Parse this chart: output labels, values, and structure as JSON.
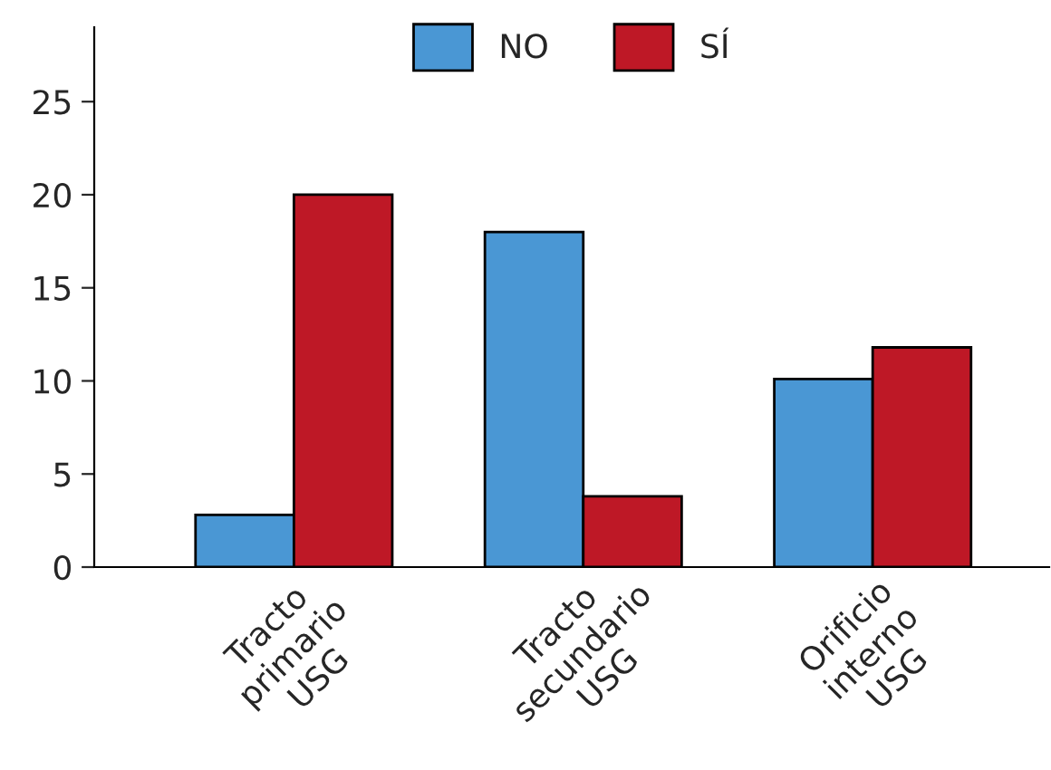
{
  "chart_data": {
    "type": "bar",
    "categories": [
      "Tracto\nprimario\nUSG",
      "Tracto\nsecundario\nUSG",
      "Orificio\ninterno\nUSG"
    ],
    "series": [
      {
        "name": "NO",
        "color": "#4a97d4",
        "values": [
          2.8,
          18,
          10.1
        ]
      },
      {
        "name": "SÍ",
        "color": "#be1826",
        "values": [
          20,
          3.8,
          11.8
        ]
      }
    ],
    "ylim": [
      0,
      29
    ],
    "yticks": [
      0,
      5,
      10,
      15,
      20,
      25
    ],
    "grid": false,
    "legend": "top"
  }
}
